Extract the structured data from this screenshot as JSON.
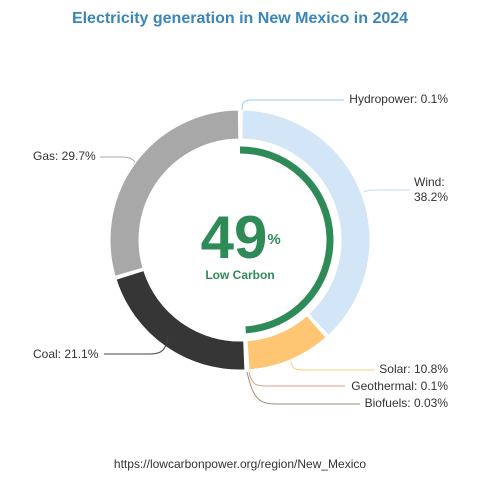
{
  "chart_data": {
    "type": "pie",
    "title": "Electricity generation in New Mexico in 2024",
    "slices": [
      {
        "name": "Hydropower",
        "value": 0.1,
        "label": "Hydropower: 0.1%",
        "color": "#4aa3df"
      },
      {
        "name": "Wind",
        "value": 38.2,
        "label_lines": [
          "Wind:",
          "38.2%"
        ],
        "color": "#d3e6f7"
      },
      {
        "name": "Solar",
        "value": 10.8,
        "label": "Solar: 10.8%",
        "color": "#fec672"
      },
      {
        "name": "Geothermal",
        "value": 0.1,
        "label": "Geothermal: 0.1%",
        "color": "#d2693c"
      },
      {
        "name": "Biofuels",
        "value": 0.03,
        "label": "Biofuels: 0.03%",
        "color": "#8a7b45"
      },
      {
        "name": "Coal",
        "value": 21.1,
        "label": "Coal: 21.1%",
        "color": "#363636"
      },
      {
        "name": "Gas",
        "value": 29.7,
        "label": "Gas: 29.7%",
        "color": "#a8a8a8"
      }
    ],
    "low_carbon": {
      "value": 49,
      "value_text": "49",
      "unit": "%",
      "label": "Low Carbon",
      "color": "#2e8b57"
    }
  },
  "source": "https://lowcarbonpower.org/region/New_Mexico"
}
